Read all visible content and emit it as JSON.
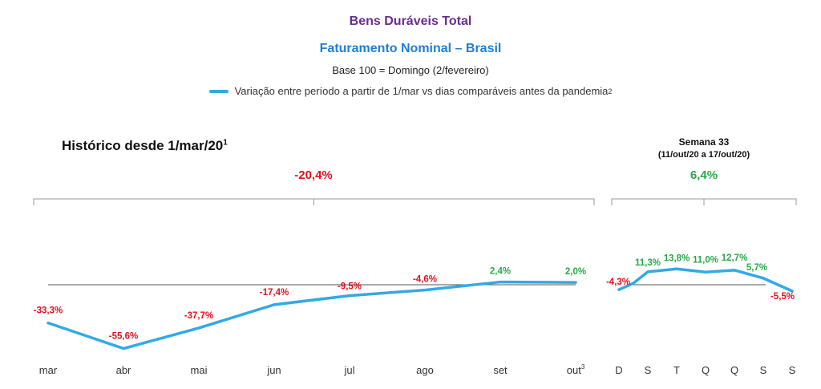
{
  "title": "Bens Duráveis Total",
  "subtitle": "Faturamento Nominal – Brasil",
  "base_note": "Base 100 = Domingo (2/fevereiro)",
  "legend": {
    "label": "Variação entre período a partir de 1/mar vs dias comparáveis antes da pandemia",
    "sup": "2",
    "color": "#33a9e6"
  },
  "colors": {
    "negative": "#e3101c",
    "positive": "#2aa84a",
    "line": "#33a9e6",
    "title": "#6a2c91",
    "subtitle": "#1f7fd6"
  },
  "chart_data": [
    {
      "type": "line",
      "title": "Histórico desde 1/mar/20",
      "title_sup": "1",
      "total_label": "-20,4%",
      "categories": [
        "mar",
        "abr",
        "mai",
        "jun",
        "jul",
        "ago",
        "set",
        "out"
      ],
      "category_sups": [
        "",
        "",
        "",
        "",
        "",
        "",
        "",
        "3"
      ],
      "values": [
        -33.3,
        -55.6,
        -37.7,
        -17.4,
        -9.5,
        -4.6,
        2.4,
        2.0
      ],
      "data_labels": [
        "-33,3%",
        "-55,6%",
        "-37,7%",
        "-17,4%",
        "-9,5%",
        "-4,6%",
        "2,4%",
        "2,0%"
      ],
      "ylim": [
        -60,
        15
      ],
      "baseline": 0
    },
    {
      "type": "line",
      "title": "Semana 33",
      "subtitle": "(11/out/20 a 17/out/20)",
      "total_label": "6,4%",
      "categories": [
        "D",
        "S",
        "T",
        "Q",
        "Q",
        "S",
        "S"
      ],
      "values": [
        -4.3,
        11.3,
        13.8,
        11.0,
        12.7,
        5.7,
        -5.5
      ],
      "data_labels": [
        "-4,3%",
        "11,3%",
        "13,8%",
        "11,0%",
        "12,7%",
        "5,7%",
        "-5,5%"
      ],
      "ylim": [
        -60,
        15
      ],
      "baseline": 0
    }
  ]
}
